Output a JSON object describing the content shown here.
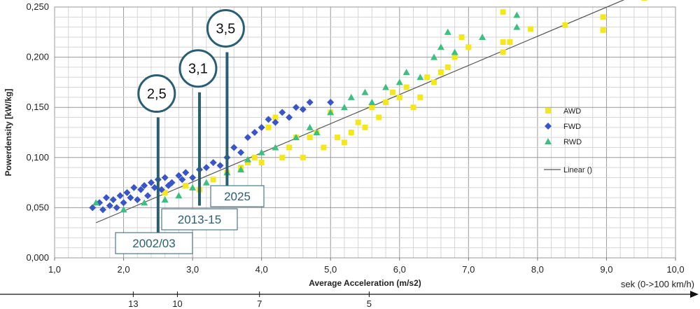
{
  "chart_data": {
    "type": "scatter",
    "title": "",
    "xlabel": "Average Acceleration (m/s2)",
    "ylabel": "Powerdensity [kW/kg]",
    "xlim": [
      1.0,
      10.0
    ],
    "ylim": [
      0.0,
      0.25
    ],
    "x_ticks": [
      "1,0",
      "2,0",
      "3,0",
      "4,0",
      "5,0",
      "6,0",
      "7,0",
      "8,0",
      "9,0",
      "10,0"
    ],
    "y_ticks": [
      "0,000",
      "0,050",
      "0,100",
      "0,150",
      "0,200",
      "0,250"
    ],
    "grid": true,
    "legend_position": "right",
    "series": [
      {
        "name": "AWD",
        "color": "#f4e81c",
        "marker": "square",
        "points": [
          [
            2.6,
            0.065
          ],
          [
            2.9,
            0.072
          ],
          [
            3.1,
            0.068
          ],
          [
            3.3,
            0.078
          ],
          [
            3.5,
            0.085
          ],
          [
            3.7,
            0.09
          ],
          [
            3.8,
            0.095
          ],
          [
            3.9,
            0.1
          ],
          [
            4.0,
            0.095
          ],
          [
            4.1,
            0.13
          ],
          [
            4.2,
            0.14
          ],
          [
            4.3,
            0.1
          ],
          [
            4.4,
            0.11
          ],
          [
            4.5,
            0.12
          ],
          [
            4.6,
            0.1
          ],
          [
            4.7,
            0.12
          ],
          [
            4.8,
            0.125
          ],
          [
            4.9,
            0.11
          ],
          [
            5.0,
            0.145
          ],
          [
            5.1,
            0.12
          ],
          [
            5.2,
            0.115
          ],
          [
            5.3,
            0.125
          ],
          [
            5.4,
            0.135
          ],
          [
            5.5,
            0.13
          ],
          [
            5.6,
            0.15
          ],
          [
            5.7,
            0.14
          ],
          [
            5.8,
            0.155
          ],
          [
            5.9,
            0.165
          ],
          [
            6.0,
            0.16
          ],
          [
            6.1,
            0.17
          ],
          [
            6.2,
            0.15
          ],
          [
            6.3,
            0.16
          ],
          [
            6.4,
            0.18
          ],
          [
            6.5,
            0.175
          ],
          [
            6.6,
            0.185
          ],
          [
            6.7,
            0.19
          ],
          [
            6.8,
            0.2
          ],
          [
            6.9,
            0.22
          ],
          [
            7.0,
            0.21
          ],
          [
            7.5,
            0.245
          ],
          [
            7.5,
            0.215
          ],
          [
            7.5,
            0.205
          ],
          [
            7.6,
            0.215
          ],
          [
            7.9,
            0.228
          ],
          [
            8.4,
            0.232
          ],
          [
            8.95,
            0.24
          ],
          [
            8.95,
            0.227
          ],
          [
            9.55,
            0.259
          ]
        ]
      },
      {
        "name": "FWD",
        "color": "#3a55c8",
        "marker": "diamond",
        "points": [
          [
            1.55,
            0.05
          ],
          [
            1.65,
            0.055
          ],
          [
            1.7,
            0.048
          ],
          [
            1.75,
            0.06
          ],
          [
            1.8,
            0.052
          ],
          [
            1.85,
            0.058
          ],
          [
            1.9,
            0.05
          ],
          [
            1.95,
            0.062
          ],
          [
            2.0,
            0.055
          ],
          [
            2.05,
            0.065
          ],
          [
            2.1,
            0.06
          ],
          [
            2.15,
            0.07
          ],
          [
            2.2,
            0.058
          ],
          [
            2.25,
            0.068
          ],
          [
            2.3,
            0.072
          ],
          [
            2.35,
            0.062
          ],
          [
            2.4,
            0.075
          ],
          [
            2.45,
            0.07
          ],
          [
            2.5,
            0.078
          ],
          [
            2.55,
            0.068
          ],
          [
            2.6,
            0.08
          ],
          [
            2.65,
            0.072
          ],
          [
            2.7,
            0.075
          ],
          [
            2.8,
            0.082
          ],
          [
            2.85,
            0.078
          ],
          [
            2.9,
            0.085
          ],
          [
            3.0,
            0.08
          ],
          [
            3.1,
            0.088
          ],
          [
            3.2,
            0.09
          ],
          [
            3.3,
            0.095
          ],
          [
            3.4,
            0.092
          ],
          [
            3.5,
            0.1
          ],
          [
            3.6,
            0.11
          ],
          [
            3.7,
            0.105
          ],
          [
            3.8,
            0.12
          ],
          [
            3.9,
            0.125
          ],
          [
            4.0,
            0.13
          ],
          [
            4.1,
            0.138
          ],
          [
            4.2,
            0.135
          ],
          [
            4.3,
            0.145
          ],
          [
            4.4,
            0.14
          ],
          [
            4.5,
            0.15
          ],
          [
            4.6,
            0.148
          ],
          [
            4.7,
            0.155
          ],
          [
            5.0,
            0.155
          ]
        ]
      },
      {
        "name": "RWD",
        "color": "#3dbf80",
        "marker": "triangle",
        "points": [
          [
            1.6,
            0.055
          ],
          [
            2.0,
            0.048
          ],
          [
            2.3,
            0.055
          ],
          [
            2.6,
            0.058
          ],
          [
            2.8,
            0.062
          ],
          [
            3.0,
            0.07
          ],
          [
            3.2,
            0.075
          ],
          [
            3.5,
            0.085
          ],
          [
            3.7,
            0.088
          ],
          [
            3.8,
            0.098
          ],
          [
            4.0,
            0.105
          ],
          [
            4.2,
            0.11
          ],
          [
            4.5,
            0.12
          ],
          [
            4.7,
            0.13
          ],
          [
            4.8,
            0.125
          ],
          [
            5.0,
            0.145
          ],
          [
            5.2,
            0.15
          ],
          [
            5.3,
            0.16
          ],
          [
            5.5,
            0.165
          ],
          [
            5.6,
            0.155
          ],
          [
            5.8,
            0.17
          ],
          [
            6.0,
            0.175
          ],
          [
            6.1,
            0.185
          ],
          [
            6.3,
            0.18
          ],
          [
            6.5,
            0.2
          ],
          [
            6.6,
            0.21
          ],
          [
            6.7,
            0.225
          ],
          [
            6.8,
            0.205
          ],
          [
            7.2,
            0.22
          ],
          [
            7.7,
            0.242
          ],
          [
            7.7,
            0.23
          ]
        ]
      },
      {
        "name": "Linear ()",
        "color": "#555555",
        "marker": "line",
        "points": [
          [
            1.6,
            0.035
          ],
          [
            9.35,
            0.26
          ]
        ]
      }
    ],
    "callouts": [
      {
        "label": "2,5",
        "x": 2.5,
        "line_top": 0.14,
        "line_bottom": 0.025
      },
      {
        "label": "3,1",
        "x": 3.1,
        "line_top": 0.165,
        "line_bottom": 0.052
      },
      {
        "label": "3,5",
        "x": 3.5,
        "line_top": 0.205,
        "line_bottom": 0.068
      }
    ],
    "era_labels": [
      "2002/03",
      "2013-15",
      "2025"
    ],
    "secondary_axis": {
      "label": "sek (0->100 km/h)",
      "ticks": [
        {
          "label": "13",
          "accel": 2.14
        },
        {
          "label": "10",
          "accel": 2.78
        },
        {
          "label": "7",
          "accel": 3.97
        },
        {
          "label": "5",
          "accel": 5.56
        }
      ]
    }
  }
}
